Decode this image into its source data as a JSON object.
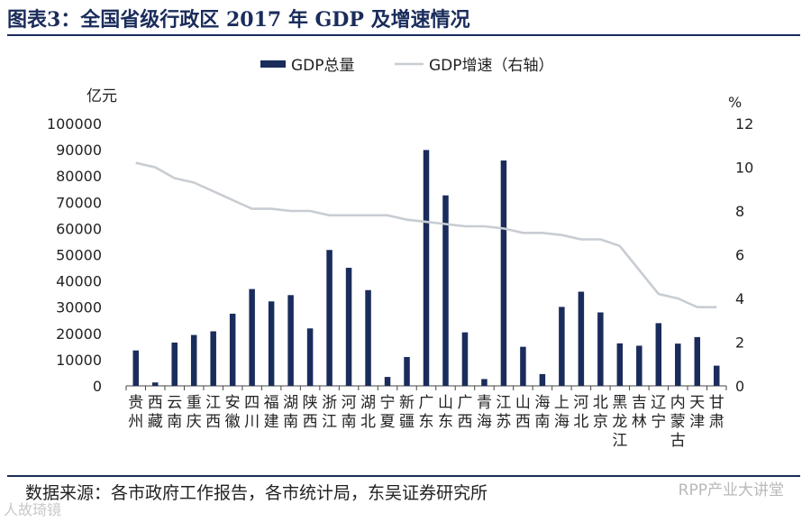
{
  "title": "图表3：全国省级行政区 2017 年 GDP 及增速情况",
  "source_text": "数据来源：各市政府工作报告，各市统计局，东吴证券研究所",
  "watermark_text": "RPP产业大讲堂",
  "watermark_text2": "人故琦镜",
  "colors": {
    "bar": "#1a2c5b",
    "line": "#c8cdd3",
    "title": "#1a2c5b"
  },
  "chart_data": {
    "type": "bar",
    "title": "",
    "categories": [
      "贵州",
      "西藏",
      "云南",
      "重庆",
      "江西",
      "安徽",
      "四川",
      "福建",
      "湖南",
      "陕西",
      "浙江",
      "河南",
      "湖北",
      "宁夏",
      "新疆",
      "广东",
      "山东",
      "广西",
      "青海",
      "江苏",
      "山西",
      "海南",
      "上海",
      "河北",
      "北京",
      "黑龙江",
      "吉林",
      "辽宁",
      "内蒙古",
      "天津",
      "甘肃"
    ],
    "y_left_label": "亿元",
    "y_right_label": "%",
    "y_left_ticks": [
      "0",
      "10000",
      "20000",
      "30000",
      "40000",
      "50000",
      "60000",
      "70000",
      "80000",
      "90000",
      "100000"
    ],
    "y_right_ticks": [
      "0",
      "2",
      "4",
      "6",
      "8",
      "10",
      "12"
    ],
    "ylim_left": [
      0,
      100000
    ],
    "ylim_right": [
      0,
      12
    ],
    "legend": {
      "bar_label": "GDP总量",
      "line_label": "GDP增速（右轴）",
      "position": "top-center"
    },
    "series": [
      {
        "name": "GDP总量",
        "type": "bar",
        "axis": "left",
        "values": [
          13500,
          1300,
          16500,
          19400,
          20800,
          27500,
          36900,
          32200,
          34600,
          21900,
          51800,
          45000,
          36500,
          3400,
          11000,
          89900,
          72600,
          20400,
          2600,
          85900,
          14900,
          4500,
          30100,
          35900,
          28000,
          16200,
          15300,
          23900,
          16100,
          18600,
          7700
        ]
      },
      {
        "name": "GDP增速（右轴）",
        "type": "line",
        "axis": "right",
        "values": [
          10.2,
          10.0,
          9.5,
          9.3,
          8.9,
          8.5,
          8.1,
          8.1,
          8.0,
          8.0,
          7.8,
          7.8,
          7.8,
          7.8,
          7.6,
          7.5,
          7.4,
          7.3,
          7.3,
          7.2,
          7.0,
          7.0,
          6.9,
          6.7,
          6.7,
          6.4,
          5.3,
          4.2,
          4.0,
          3.6,
          3.6
        ]
      }
    ]
  }
}
